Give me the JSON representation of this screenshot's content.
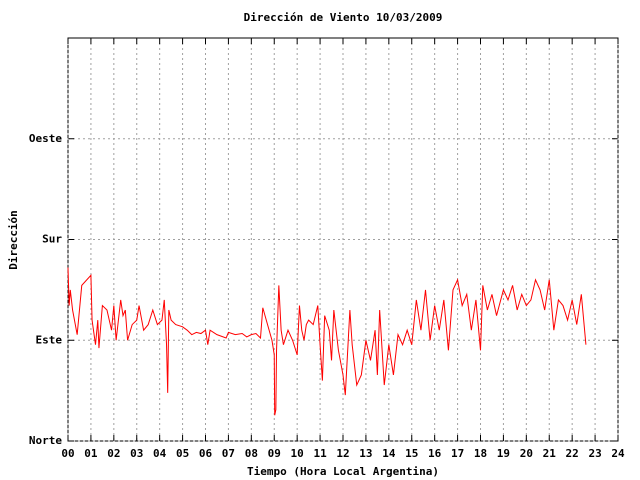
{
  "chart_data": {
    "type": "line",
    "title": "Dirección de Viento 10/03/2009",
    "x_label": "Tiempo (Hora Local Argentina)",
    "y_label": "Dirección",
    "grid": true,
    "xlim": [
      0,
      24
    ],
    "xticks": [
      {
        "value": 0,
        "label": "00"
      },
      {
        "value": 1,
        "label": "01"
      },
      {
        "value": 2,
        "label": "02"
      },
      {
        "value": 3,
        "label": "03"
      },
      {
        "value": 4,
        "label": "04"
      },
      {
        "value": 5,
        "label": "05"
      },
      {
        "value": 6,
        "label": "06"
      },
      {
        "value": 7,
        "label": "07"
      },
      {
        "value": 8,
        "label": "08"
      },
      {
        "value": 9,
        "label": "09"
      },
      10,
      11,
      12,
      13,
      14,
      15,
      16,
      17,
      18,
      19,
      20,
      21,
      22,
      23,
      24
    ],
    "ylim": [
      0,
      360
    ],
    "yticks": [
      {
        "value": 0,
        "label": "Norte"
      },
      {
        "value": 90,
        "label": "Este"
      },
      {
        "value": 180,
        "label": "Sur"
      },
      {
        "value": 270,
        "label": "Oeste"
      }
    ],
    "x": [
      0,
      0.05,
      0.1,
      0.2,
      0.4,
      0.6,
      1.0,
      1.05,
      1.2,
      1.3,
      1.35,
      1.5,
      1.7,
      1.9,
      2.0,
      2.1,
      2.2,
      2.3,
      2.4,
      2.5,
      2.6,
      2.8,
      3.0,
      3.1,
      3.3,
      3.5,
      3.7,
      3.9,
      4.1,
      4.2,
      4.3,
      4.35,
      4.4,
      4.5,
      4.7,
      5.0,
      5.2,
      5.4,
      5.6,
      5.8,
      6.0,
      6.1,
      6.2,
      6.5,
      6.9,
      7.0,
      7.3,
      7.6,
      7.8,
      8.0,
      8.2,
      8.4,
      8.5,
      8.9,
      9.0,
      9.02,
      9.07,
      9.1,
      9.2,
      9.3,
      9.4,
      9.6,
      9.8,
      10.0,
      10.1,
      10.2,
      10.3,
      10.4,
      10.5,
      10.7,
      10.9,
      11.0,
      11.1,
      11.2,
      11.4,
      11.5,
      11.6,
      11.8,
      12.0,
      12.1,
      12.3,
      12.4,
      12.6,
      12.8,
      13.0,
      13.2,
      13.4,
      13.5,
      13.6,
      13.8,
      14.0,
      14.2,
      14.4,
      14.6,
      14.8,
      15.0,
      15.2,
      15.4,
      15.6,
      15.8,
      16.0,
      16.2,
      16.4,
      16.6,
      16.8,
      17.0,
      17.2,
      17.4,
      17.6,
      17.8,
      18.0,
      18.1,
      18.3,
      18.5,
      18.7,
      19.0,
      19.2,
      19.4,
      19.6,
      19.8,
      20.0,
      20.2,
      20.4,
      20.6,
      20.8,
      21.0,
      21.2,
      21.4,
      21.6,
      21.8,
      22.0,
      22.2,
      22.4,
      22.6
    ],
    "series": [
      {
        "color": "#ff0000",
        "values": [
          155,
          121,
          135,
          117,
          95,
          139,
          148,
          108,
          86,
          108,
          83,
          121,
          117,
          99,
          121,
          90,
          108,
          126,
          112,
          117,
          90,
          104,
          108,
          121,
          99,
          104,
          117,
          104,
          108,
          126,
          86,
          43,
          117,
          108,
          104,
          102,
          99,
          95,
          97,
          96,
          99,
          86,
          99,
          95,
          92,
          97,
          95,
          96,
          93,
          95,
          96,
          92,
          119,
          90,
          77,
          23,
          28,
          81,
          139,
          99,
          86,
          99,
          90,
          77,
          121,
          99,
          90,
          104,
          108,
          104,
          121,
          86,
          54,
          112,
          99,
          72,
          117,
          81,
          59,
          41,
          117,
          86,
          50,
          59,
          90,
          72,
          99,
          59,
          117,
          50,
          86,
          59,
          95,
          86,
          99,
          86,
          126,
          99,
          135,
          90,
          121,
          99,
          126,
          81,
          135,
          144,
          121,
          131,
          99,
          126,
          81,
          139,
          117,
          131,
          112,
          135,
          126,
          139,
          117,
          131,
          121,
          126,
          144,
          135,
          117,
          144,
          99,
          126,
          121,
          108,
          126,
          104,
          131,
          86
        ]
      }
    ]
  }
}
